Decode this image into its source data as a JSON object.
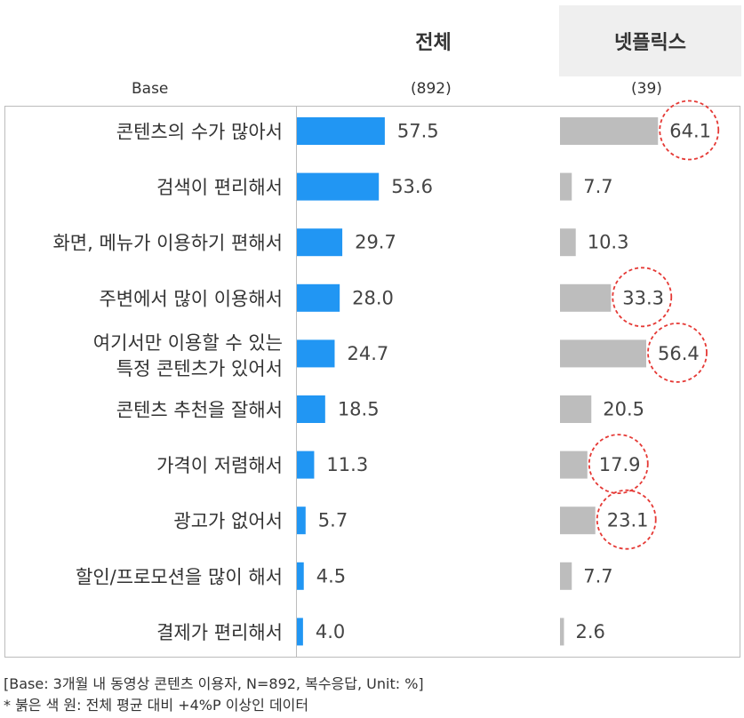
{
  "chart_data": {
    "type": "bar",
    "orientation": "horizontal",
    "base_label": "Base",
    "categories": [
      [
        "콘텐츠의 수가 많아서"
      ],
      [
        "검색이 편리해서"
      ],
      [
        "화면, 메뉴가 이용하기 편해서"
      ],
      [
        "주변에서 많이 이용해서"
      ],
      [
        "여기서만 이용할 수 있는",
        "특정 콘텐츠가 있어서"
      ],
      [
        "콘텐츠 추천을 잘해서"
      ],
      [
        "가격이 저렴해서"
      ],
      [
        "광고가 없어서"
      ],
      [
        "할인/프로모션을 많이 해서"
      ],
      [
        "결제가 편리해서"
      ]
    ],
    "series": [
      {
        "name": "전체",
        "base": "(892)",
        "color": "#2196f3",
        "values": [
          57.5,
          53.6,
          29.7,
          28.0,
          24.7,
          18.5,
          11.3,
          5.7,
          4.5,
          4.0
        ],
        "labels": [
          "57.5",
          "53.6",
          "29.7",
          "28.0",
          "24.7",
          "18.5",
          "11.3",
          "5.7",
          "4.5",
          "4.0"
        ]
      },
      {
        "name": "넷플릭스",
        "base": "(39)",
        "color": "#bdbdbd",
        "values": [
          64.1,
          7.7,
          10.3,
          33.3,
          56.4,
          20.5,
          17.9,
          23.1,
          7.7,
          2.6
        ],
        "labels": [
          "64.1",
          "7.7",
          "10.3",
          "33.3",
          "56.4",
          "20.5",
          "17.9",
          "23.1",
          "7.7",
          "2.6"
        ],
        "highlighted": [
          true,
          false,
          false,
          true,
          true,
          false,
          true,
          true,
          false,
          false
        ],
        "highlight_color": "#e53935"
      }
    ],
    "legend": "column headers at top",
    "grid": false
  },
  "footnotes": [
    "[Base: 3개월 내 동영상 콘텐츠 이용자, N=892, 복수응답, Unit: %]",
    "* 붉은 색 원: 전체 평균 대비 +4%P 이상인 데이터"
  ]
}
